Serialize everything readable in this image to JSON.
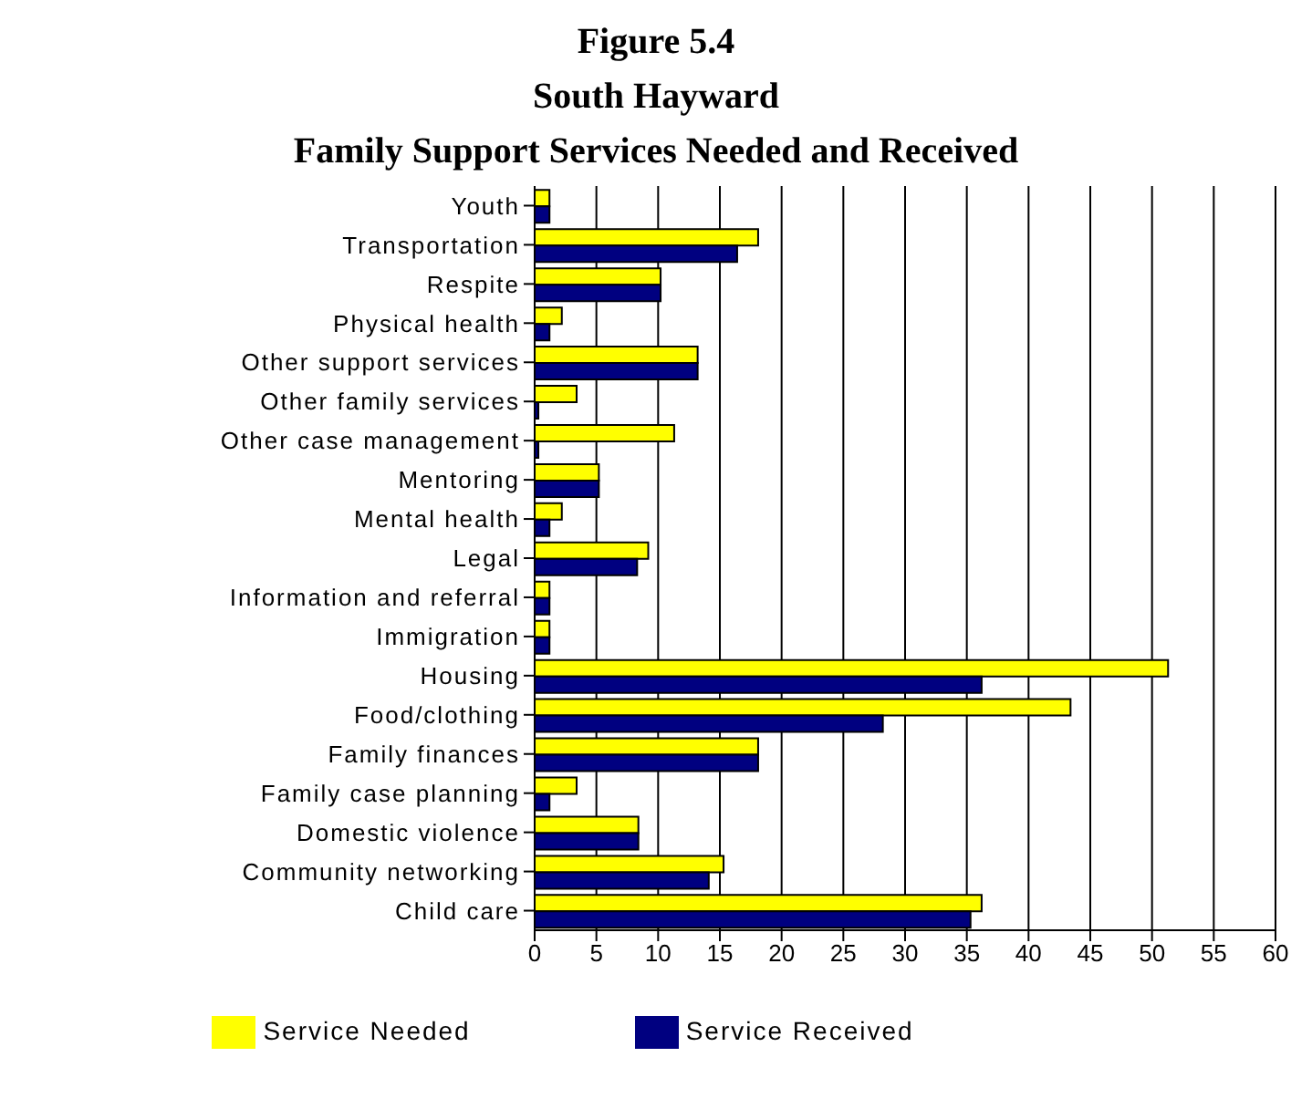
{
  "chart_data": {
    "type": "bar",
    "orientation": "horizontal",
    "title": "Figure 5.4\nSouth Hayward\nFamily Support Services Needed and Received",
    "categories": [
      "Youth",
      "Transportation",
      "Respite",
      "Physical health",
      "Other support services",
      "Other family services",
      "Other case management",
      "Mentoring",
      "Mental health",
      "Legal",
      "Information and referral",
      "Immigration",
      "Housing",
      "Food/clothing",
      "Family finances",
      "Family case planning",
      "Domestic violence",
      "Community networking",
      "Child care"
    ],
    "series": [
      {
        "name": "Service Needed",
        "color": "#ffff00",
        "values": [
          1.2,
          18.1,
          10.2,
          2.2,
          13.2,
          3.4,
          11.3,
          5.2,
          2.2,
          9.2,
          1.2,
          1.2,
          51.3,
          43.4,
          18.1,
          3.4,
          8.4,
          15.3,
          36.2
        ]
      },
      {
        "name": "Service Received",
        "color": "#000080",
        "values": [
          1.2,
          16.4,
          10.2,
          1.2,
          13.2,
          0.3,
          0.3,
          5.2,
          1.2,
          8.3,
          1.2,
          1.2,
          36.2,
          28.2,
          18.1,
          1.2,
          8.4,
          14.1,
          35.3
        ]
      }
    ],
    "xlim": [
      0,
      60
    ],
    "xticks": [
      0,
      5,
      10,
      15,
      20,
      25,
      30,
      35,
      40,
      45,
      50,
      55,
      60
    ],
    "grid": "x",
    "legend": "bottom"
  }
}
